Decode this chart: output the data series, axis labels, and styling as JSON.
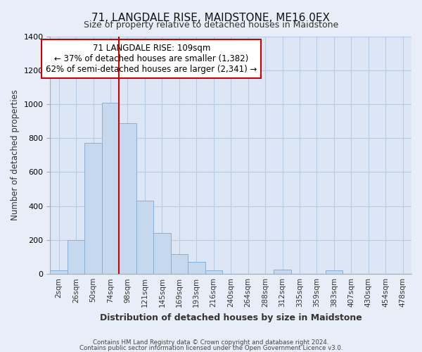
{
  "title": "71, LANGDALE RISE, MAIDSTONE, ME16 0EX",
  "subtitle": "Size of property relative to detached houses in Maidstone",
  "xlabel": "Distribution of detached houses by size in Maidstone",
  "ylabel": "Number of detached properties",
  "bar_labels": [
    "2sqm",
    "26sqm",
    "50sqm",
    "74sqm",
    "98sqm",
    "121sqm",
    "145sqm",
    "169sqm",
    "193sqm",
    "216sqm",
    "240sqm",
    "264sqm",
    "288sqm",
    "312sqm",
    "335sqm",
    "359sqm",
    "383sqm",
    "407sqm",
    "430sqm",
    "454sqm",
    "478sqm"
  ],
  "bar_heights": [
    20,
    200,
    770,
    1010,
    890,
    430,
    240,
    115,
    70,
    20,
    0,
    0,
    0,
    25,
    0,
    0,
    20,
    0,
    0,
    0,
    0
  ],
  "bar_color": "#c5d8ee",
  "bar_edge_color": "#8aafd4",
  "vline_x": 3.5,
  "vline_color": "#cc0000",
  "ylim": [
    0,
    1400
  ],
  "yticks": [
    0,
    200,
    400,
    600,
    800,
    1000,
    1200,
    1400
  ],
  "annotation_title": "71 LANGDALE RISE: 109sqm",
  "annotation_line1": "← 37% of detached houses are smaller (1,382)",
  "annotation_line2": "62% of semi-detached houses are larger (2,341) →",
  "footnote1": "Contains HM Land Registry data © Crown copyright and database right 2024.",
  "footnote2": "Contains public sector information licensed under the Open Government Licence v3.0.",
  "bg_color": "#e8eef8",
  "plot_bg_color": "#dce6f5",
  "grid_color": "#b8cce4"
}
